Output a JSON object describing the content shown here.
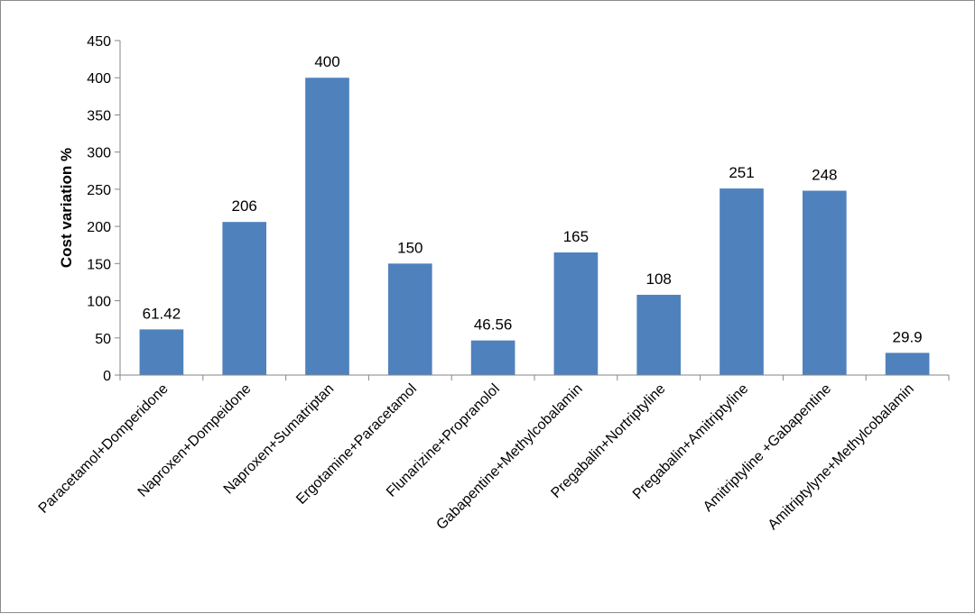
{
  "chart_data": {
    "type": "bar",
    "categories": [
      "Paracetamol+Domperidone",
      "Naproxen+Dompeidone",
      "Naproxen+Sumatriptan",
      "Ergotamine+Paracetamol",
      "Flunarizine+Propranolol",
      "Gabapentine+Methylcobalamin",
      "Pregabalin+Nortriptyline",
      "Pregabalin+Amitriptyline",
      "Amitriptyline +Gabapentine",
      "Amitriptylyne+Methylcobalamin"
    ],
    "values": [
      61.42,
      206,
      400,
      150,
      46.56,
      165,
      108,
      251,
      248,
      29.9
    ],
    "data_labels": [
      "61.42",
      "206",
      "400",
      "150",
      "46.56",
      "165",
      "108",
      "251",
      "248",
      "29.9"
    ],
    "ylabel": "Cost variation %",
    "ylim": [
      0,
      450
    ],
    "yticks": [
      0,
      50,
      100,
      150,
      200,
      250,
      300,
      350,
      400,
      450
    ],
    "grid": false,
    "legend": "none",
    "bar_color": "#4f81bd"
  }
}
